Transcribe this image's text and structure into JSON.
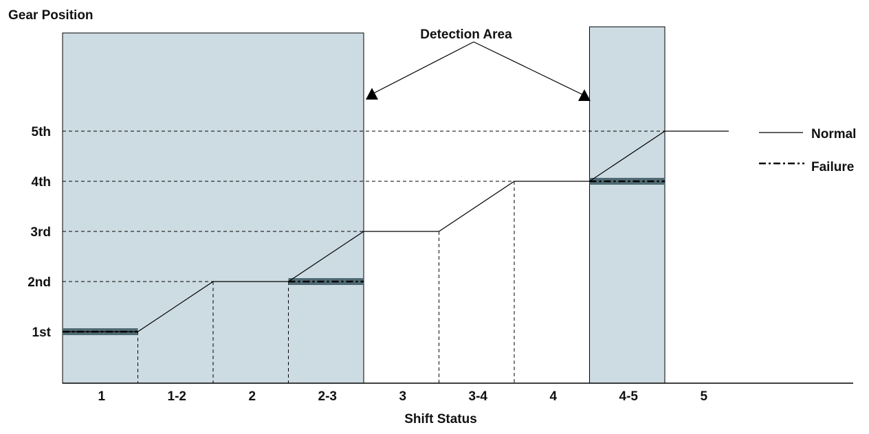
{
  "chart_data": {
    "type": "line",
    "ylabel": "Gear Position",
    "xlabel": "Shift Status",
    "y_ticks": [
      "1st",
      "2nd",
      "3rd",
      "4th",
      "5th"
    ],
    "x_categories": [
      "1",
      "1-2",
      "2",
      "2-3",
      "3",
      "3-4",
      "4",
      "4-5",
      "5"
    ],
    "annotation": "Detection Area",
    "legend": {
      "placement": "right",
      "normal": "Normal",
      "failure": "Failure"
    },
    "series": [
      {
        "name": "Normal",
        "style": "solid",
        "points": [
          [
            0,
            1
          ],
          [
            1,
            1
          ],
          [
            2,
            2
          ],
          [
            3,
            2
          ],
          [
            4,
            3
          ],
          [
            5,
            3
          ],
          [
            6,
            4
          ],
          [
            7,
            4
          ],
          [
            8,
            5
          ],
          [
            8.85,
            5
          ]
        ]
      },
      {
        "name": "Failure",
        "style": "dash-dot",
        "segments": [
          [
            [
              0,
              1
            ],
            [
              1,
              1
            ]
          ],
          [
            [
              3,
              2
            ],
            [
              4,
              2
            ]
          ],
          [
            [
              7,
              4
            ],
            [
              8,
              4
            ]
          ]
        ]
      }
    ],
    "detection_areas": [
      [
        0,
        4
      ],
      [
        7,
        8
      ]
    ],
    "colors": {
      "detection_fill": "#cddbe2",
      "failure_highlight": "#4f6a73",
      "line": "#000000"
    }
  }
}
